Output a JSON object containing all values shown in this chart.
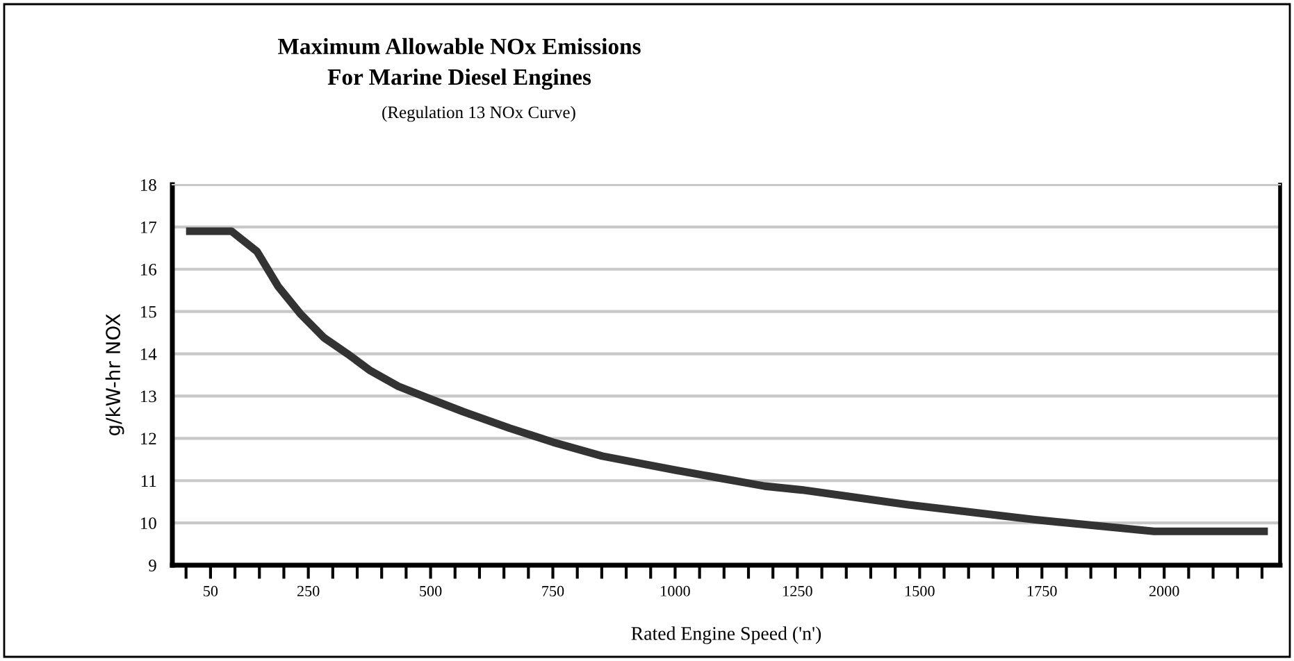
{
  "chart_data": {
    "type": "line",
    "title": "Maximum Allowable NOx Emissions\nFor Marine Diesel Engines",
    "subtitle": "(Regulation 13 NOx Curve)",
    "xlabel": "Rated Engine Speed ('n')",
    "ylabel": "g/kW-hr NOX",
    "series": [
      {
        "color": "#333333",
        "x": [
          0,
          93,
          145,
          188,
          235,
          282,
          330,
          377,
          434,
          500,
          567,
          662,
          750,
          851,
          1000,
          1183,
          1259,
          1477,
          1733,
          1979,
          2212
        ],
        "values": [
          16.9,
          16.9,
          16.42,
          15.6,
          14.93,
          14.38,
          14.0,
          13.6,
          13.23,
          12.93,
          12.63,
          12.24,
          11.91,
          11.58,
          11.25,
          10.87,
          10.78,
          10.43,
          10.08,
          9.8,
          9.8
        ]
      }
    ],
    "xlim": [
      -28,
      2237
    ],
    "ylim": [
      9,
      18
    ],
    "xticks": [
      {
        "value": 0,
        "label": null
      },
      50,
      {
        "value": 100,
        "label": null
      },
      {
        "value": 150,
        "label": null
      },
      {
        "value": 200,
        "label": null
      },
      250,
      {
        "value": 300,
        "label": null
      },
      {
        "value": 350,
        "label": null
      },
      {
        "value": 400,
        "label": null
      },
      {
        "value": 450,
        "label": null
      },
      500,
      {
        "value": 550,
        "label": null
      },
      {
        "value": 600,
        "label": null
      },
      {
        "value": 650,
        "label": null
      },
      {
        "value": 700,
        "label": null
      },
      750,
      {
        "value": 800,
        "label": null
      },
      {
        "value": 850,
        "label": null
      },
      {
        "value": 900,
        "label": null
      },
      {
        "value": 950,
        "label": null
      },
      1000,
      {
        "value": 1050,
        "label": null
      },
      {
        "value": 1100,
        "label": null
      },
      {
        "value": 1150,
        "label": null
      },
      {
        "value": 1200,
        "label": null
      },
      1250,
      {
        "value": 1300,
        "label": null
      },
      {
        "value": 1350,
        "label": null
      },
      {
        "value": 1400,
        "label": null
      },
      {
        "value": 1450,
        "label": null
      },
      1500,
      {
        "value": 1550,
        "label": null
      },
      {
        "value": 1600,
        "label": null
      },
      {
        "value": 1650,
        "label": null
      },
      {
        "value": 1700,
        "label": null
      },
      1750,
      {
        "value": 1800,
        "label": null
      },
      {
        "value": 1850,
        "label": null
      },
      {
        "value": 1900,
        "label": null
      },
      {
        "value": 1950,
        "label": null
      },
      2000,
      {
        "value": 2050,
        "label": null
      },
      {
        "value": 2100,
        "label": null
      },
      {
        "value": 2150,
        "label": null
      },
      {
        "value": 2200,
        "label": null
      }
    ],
    "yticks": [
      9,
      10,
      11,
      12,
      13,
      14,
      15,
      16,
      17,
      18
    ],
    "grid": "y",
    "legend": false,
    "marker": "none",
    "line_style": "solid"
  }
}
